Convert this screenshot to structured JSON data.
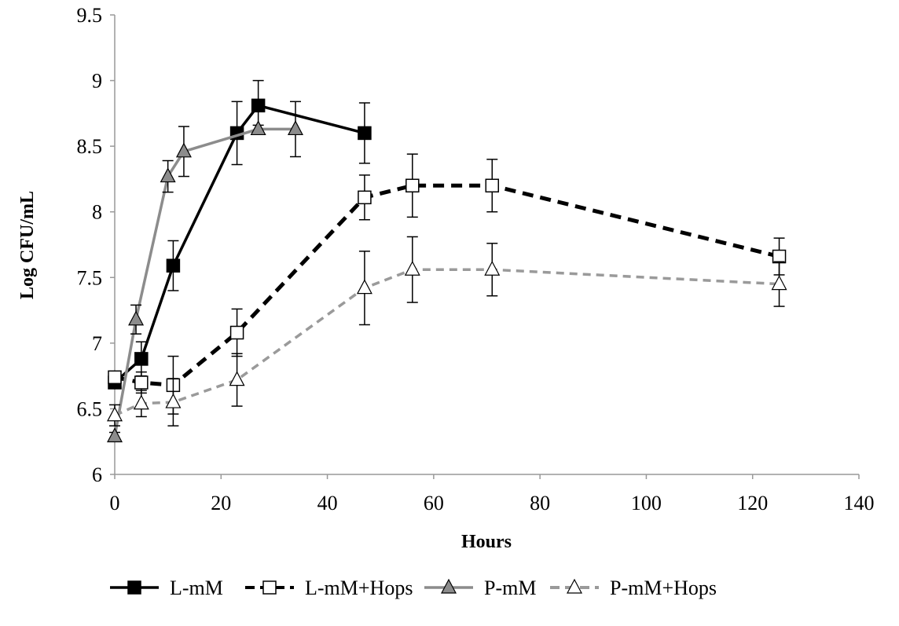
{
  "chart_data": {
    "type": "line",
    "title": "",
    "xlabel": "Hours",
    "ylabel": "Log CFU/mL",
    "xlim": [
      0,
      140
    ],
    "ylim": [
      6,
      9.5
    ],
    "xticks": [
      "0",
      "20",
      "40",
      "60",
      "80",
      "100",
      "120",
      "140"
    ],
    "yticks": [
      "6",
      "6.5",
      "7",
      "7.5",
      "8",
      "8.5",
      "9",
      "9.5"
    ],
    "grid": false,
    "legend_position": "bottom",
    "series": [
      {
        "name": "L-mM",
        "color": "#000000",
        "dashed": false,
        "marker": "square-filled",
        "x": [
          0,
          5,
          11,
          23,
          27,
          47
        ],
        "y": [
          6.7,
          6.88,
          7.59,
          8.6,
          8.81,
          8.6
        ],
        "err": [
          0.04,
          0.13,
          0.19,
          0.24,
          0.19,
          0.23
        ]
      },
      {
        "name": "L-mM+Hops",
        "color": "#000000",
        "dashed": true,
        "marker": "square-open",
        "x": [
          0,
          5,
          11,
          23,
          47,
          56,
          71,
          125
        ],
        "y": [
          6.74,
          6.7,
          6.68,
          7.08,
          8.11,
          8.2,
          8.2,
          7.66
        ],
        "err": [
          0.04,
          0.08,
          0.22,
          0.18,
          0.17,
          0.24,
          0.2,
          0.14
        ]
      },
      {
        "name": "P-mM",
        "color": "#8c8c8c",
        "dashed": false,
        "marker": "triangle-filled",
        "x": [
          0,
          4,
          10,
          13,
          27,
          34
        ],
        "y": [
          6.29,
          7.18,
          8.27,
          8.46,
          8.63,
          8.63
        ],
        "err": [
          0.03,
          0.11,
          0.12,
          0.19,
          0.03,
          0.21
        ]
      },
      {
        "name": "P-mM+Hops",
        "color": "#9a9a9a",
        "dashed": true,
        "marker": "triangle-open",
        "x": [
          0,
          5,
          11,
          23,
          47,
          56,
          71,
          125
        ],
        "y": [
          6.45,
          6.54,
          6.55,
          6.72,
          7.42,
          7.56,
          7.56,
          7.45
        ],
        "err": [
          0.08,
          0.1,
          0.18,
          0.2,
          0.28,
          0.25,
          0.2,
          0.17
        ]
      }
    ]
  }
}
